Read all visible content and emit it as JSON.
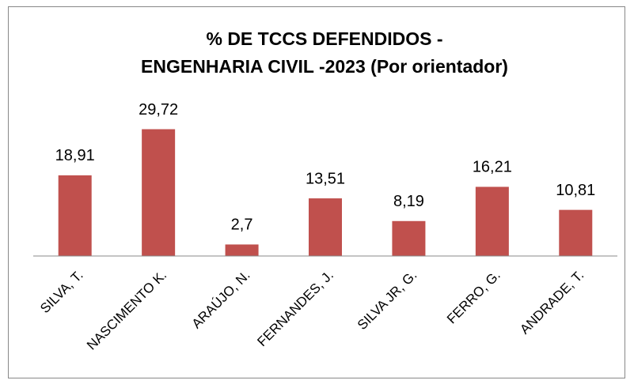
{
  "chart_data": {
    "type": "bar",
    "title": [
      "% DE TCCS DEFENDIDOS -",
      "ENGENHARIA CIVIL -2023 (Por orientador)"
    ],
    "categories": [
      "SILVA, T.",
      "NASCIMENTO K.",
      "ARAÚJO, N.",
      "FERNANDES, J.",
      "SILVA JR, G.",
      "FERRO, G.",
      "ANDRADE, T."
    ],
    "values": [
      18.91,
      29.72,
      2.7,
      13.51,
      8.19,
      16.21,
      10.81
    ],
    "value_labels": [
      "18,91",
      "29,72",
      "2,7",
      "13,51",
      "8,19",
      "16,21",
      "10,81"
    ],
    "color": "#c0504d",
    "ylim": [
      0,
      35
    ]
  }
}
